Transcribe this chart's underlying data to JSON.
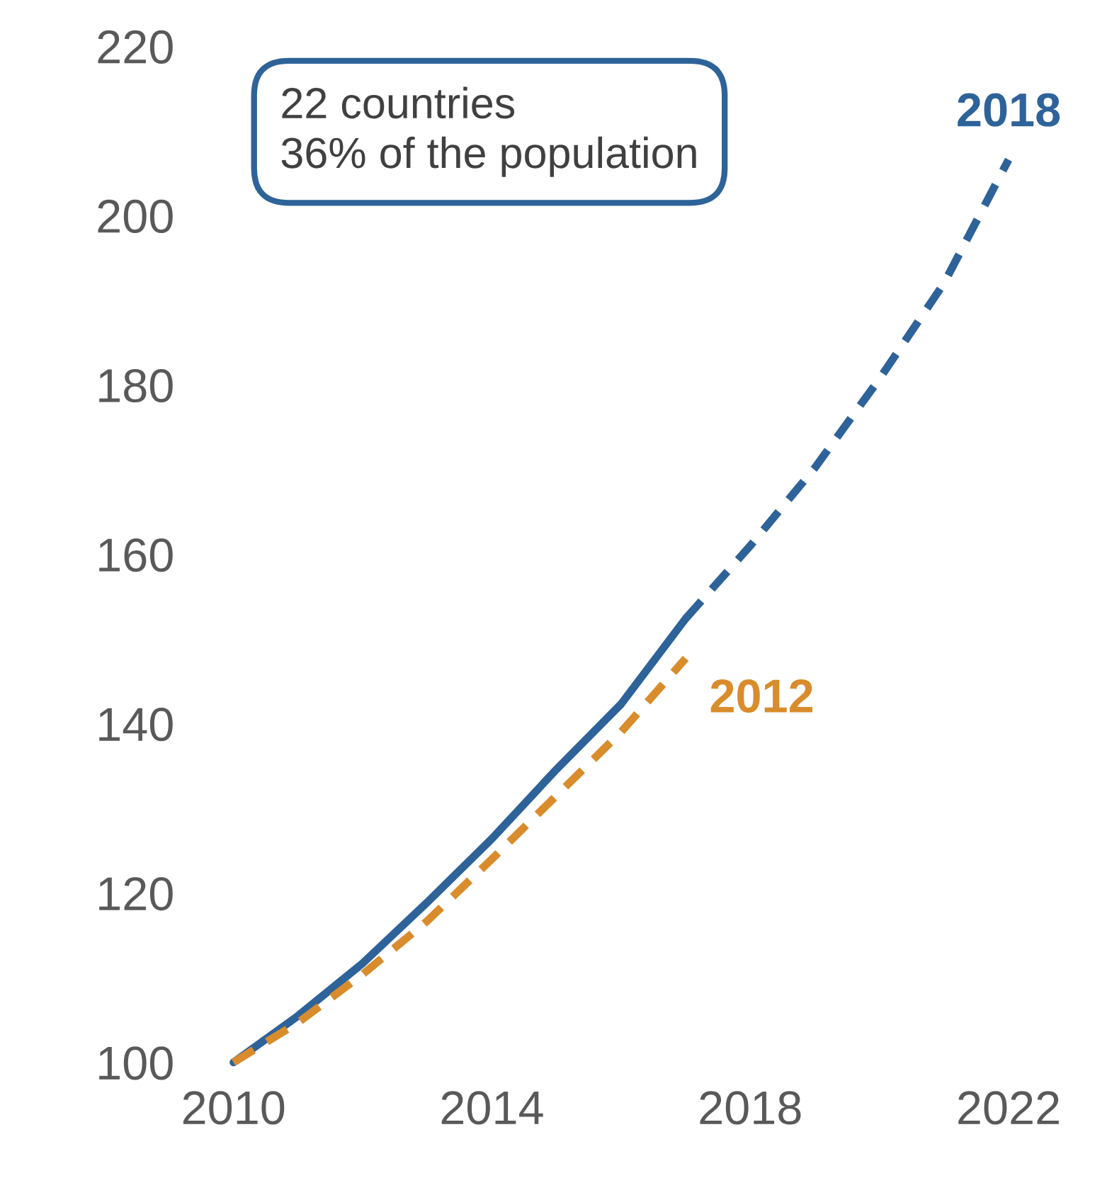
{
  "chart_data": {
    "type": "line",
    "series": [
      {
        "color": "#2e6399",
        "line_style": "solid",
        "x": [
          2010,
          2011,
          2012,
          2013,
          2014,
          2015,
          2016,
          2017
        ],
        "values": [
          100,
          105.5,
          111.7,
          118.9,
          126.4,
          134.6,
          142.3,
          152.4
        ]
      },
      {
        "name": "2018",
        "color": "#2e6399",
        "line_style": "dashed",
        "x": [
          2017,
          2018,
          2019,
          2020,
          2021,
          2022
        ],
        "values": [
          152.4,
          161,
          170.2,
          180.7,
          192,
          206.6
        ]
      },
      {
        "name": "2012",
        "color": "#d98c2b",
        "line_style": "dashed",
        "x": [
          2010,
          2011,
          2012,
          2013,
          2014,
          2015,
          2016,
          2017
        ],
        "values": [
          100,
          104.7,
          110.4,
          116.7,
          124,
          131.5,
          139,
          147.7
        ]
      }
    ],
    "annotations": [
      "22 countries\n36% of the population"
    ],
    "xlim": [
      2010,
      2022
    ],
    "xticks": [
      2010,
      2014,
      2018,
      2022
    ],
    "ylim": [
      100,
      220
    ],
    "yticks": [
      100,
      120,
      140,
      160,
      180,
      200,
      220
    ],
    "grid": false,
    "legend": false,
    "marker": "none"
  }
}
